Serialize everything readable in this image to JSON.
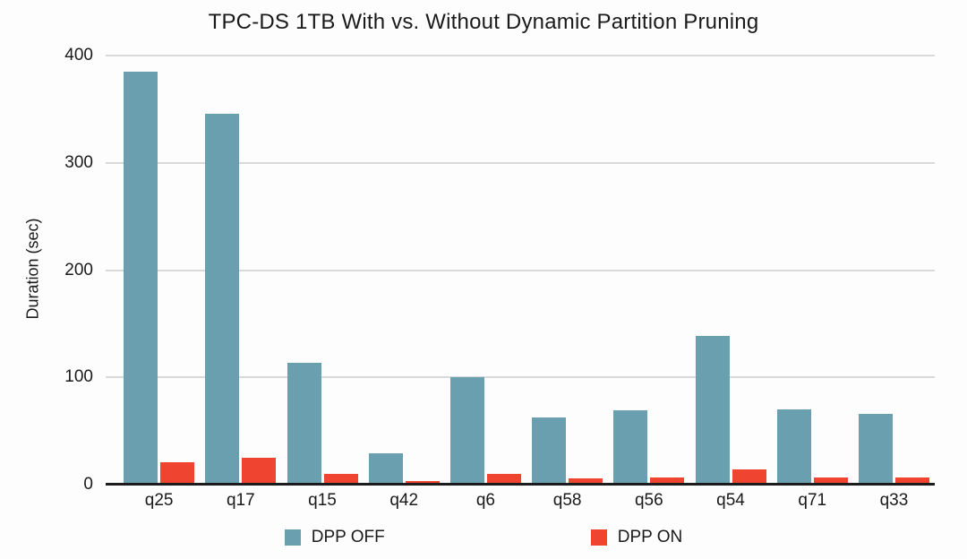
{
  "title": "TPC-DS 1TB With vs. Without Dynamic Partition Pruning",
  "colors": {
    "background": "#FDFDFD",
    "gridline": "#D9D9D9",
    "axis_line": "#1C1C1E",
    "text": "#1A1A1A",
    "series_dpp_off": "#6A9FB0",
    "series_dpp_on": "#EF4430"
  },
  "chart_data": {
    "type": "bar",
    "title": "TPC-DS 1TB With vs. Without Dynamic Partition Pruning",
    "xlabel": "",
    "ylabel": "Duration (sec)",
    "categories": [
      "q25",
      "q17",
      "q15",
      "q42",
      "q6",
      "q58",
      "q56",
      "q54",
      "q71",
      "q33"
    ],
    "series": [
      {
        "name": "DPP OFF",
        "color": "#6A9FB0",
        "values": [
          385,
          346,
          114,
          29,
          100,
          63,
          69,
          139,
          70,
          66
        ]
      },
      {
        "name": "DPP ON",
        "color": "#EF4430",
        "values": [
          21,
          25,
          10,
          3,
          10,
          6,
          7,
          14,
          7,
          7
        ]
      }
    ],
    "ylim": [
      0,
      400
    ],
    "yticks": [
      0,
      100,
      200,
      300,
      400
    ],
    "grid": true,
    "legend_position": "bottom"
  }
}
